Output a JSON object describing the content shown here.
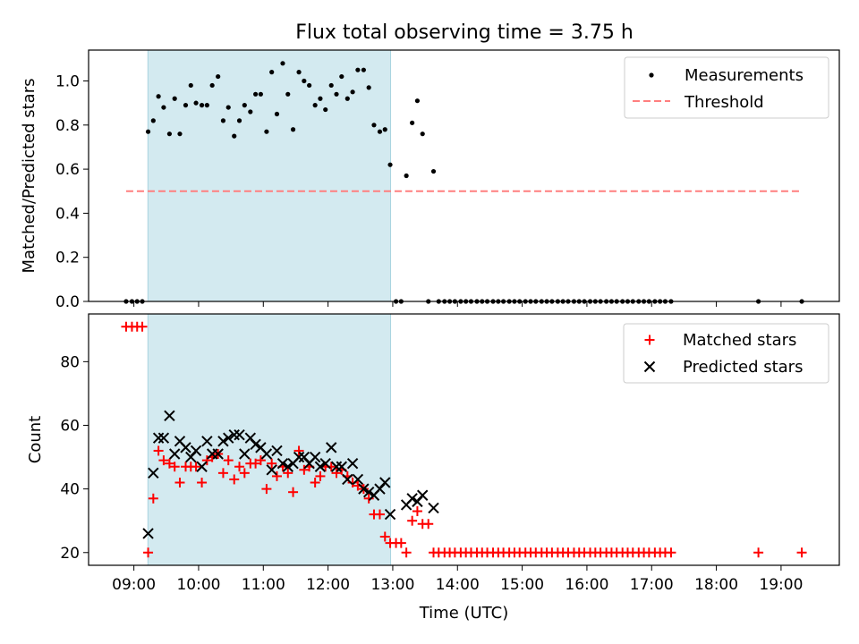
{
  "title": "Flux total observing time = 3.75 h",
  "chart_data": [
    {
      "type": "scatter",
      "ylabel": "Matched/Predicted stars",
      "xlim": [
        8.3,
        19.9
      ],
      "ylim": [
        0,
        1.14
      ],
      "yticks": [
        "0.0",
        "0.2",
        "0.4",
        "0.6",
        "0.8",
        "1.0"
      ],
      "ytick_values": [
        0,
        0.2,
        0.4,
        0.6,
        0.8,
        1.0
      ],
      "shaded_span": [
        "09:13",
        "12:58"
      ],
      "shade_color": "#d3eaf0",
      "legend": {
        "placement": "top-right",
        "measurements_label": "Measurements",
        "threshold_label": "Threshold"
      },
      "threshold": {
        "value": 0.5,
        "x_range": [
          8.88,
          19.3
        ],
        "color": "#ff7f7f"
      },
      "measurements": {
        "color": "#000000",
        "x": [
          8.88,
          8.97,
          9.05,
          9.13,
          9.22,
          9.3,
          9.38,
          9.46,
          9.55,
          9.63,
          9.71,
          9.8,
          9.88,
          9.96,
          10.05,
          10.13,
          10.21,
          10.3,
          10.38,
          10.46,
          10.55,
          10.63,
          10.71,
          10.8,
          10.88,
          10.96,
          11.05,
          11.13,
          11.21,
          11.3,
          11.38,
          11.46,
          11.55,
          11.63,
          11.71,
          11.8,
          11.88,
          11.96,
          12.05,
          12.13,
          12.21,
          12.3,
          12.38,
          12.46,
          12.55,
          12.63,
          12.71,
          12.8,
          12.88,
          12.96,
          13.05,
          13.13,
          13.21,
          13.3,
          13.38,
          13.46,
          13.55,
          13.63,
          13.71,
          13.8,
          13.88,
          13.96,
          14.05,
          14.13,
          14.21,
          14.3,
          14.38,
          14.46,
          14.55,
          14.63,
          14.71,
          14.8,
          14.88,
          14.96,
          15.05,
          15.13,
          15.21,
          15.3,
          15.38,
          15.46,
          15.55,
          15.63,
          15.71,
          15.8,
          15.88,
          15.96,
          16.05,
          16.13,
          16.21,
          16.3,
          16.38,
          16.46,
          16.55,
          16.63,
          16.71,
          16.8,
          16.88,
          16.96,
          17.05,
          17.13,
          17.21,
          17.3,
          18.65,
          19.32
        ],
        "y": [
          0,
          0,
          0,
          0,
          0.77,
          0.82,
          0.93,
          0.88,
          0.76,
          0.92,
          0.76,
          0.89,
          0.98,
          0.9,
          0.89,
          0.89,
          0.98,
          1.02,
          0.82,
          0.88,
          0.75,
          0.82,
          0.89,
          0.86,
          0.94,
          0.94,
          0.77,
          1.04,
          0.85,
          1.08,
          0.94,
          0.78,
          1.04,
          1.0,
          0.98,
          0.89,
          0.92,
          0.87,
          0.98,
          0.94,
          1.02,
          0.92,
          0.95,
          1.05,
          1.05,
          0.97,
          0.8,
          0.77,
          0.78,
          0.62,
          0,
          0,
          0.57,
          0.81,
          0.91,
          0.76,
          0,
          0.59,
          0,
          0,
          0,
          0,
          0,
          0,
          0,
          0,
          0,
          0,
          0,
          0,
          0,
          0,
          0,
          0,
          0,
          0,
          0,
          0,
          0,
          0,
          0,
          0,
          0,
          0,
          0,
          0,
          0,
          0,
          0,
          0,
          0,
          0,
          0,
          0,
          0,
          0,
          0,
          0,
          0,
          0,
          0,
          0,
          0,
          0
        ]
      }
    },
    {
      "type": "scatter",
      "xlabel": "Time (UTC)",
      "ylabel": "Count",
      "xlim": [
        8.3,
        19.9
      ],
      "ylim": [
        16,
        95
      ],
      "xticks": [
        "09:00",
        "10:00",
        "11:00",
        "12:00",
        "13:00",
        "14:00",
        "15:00",
        "16:00",
        "17:00",
        "18:00",
        "19:00"
      ],
      "yticks": [
        "20",
        "40",
        "60",
        "80"
      ],
      "ytick_values": [
        20,
        40,
        60,
        80
      ],
      "shaded_span": [
        "09:13",
        "12:58"
      ],
      "shade_color": "#d3eaf0",
      "legend": {
        "placement": "top-right",
        "matched_label": "Matched stars",
        "predicted_label": "Predicted stars"
      },
      "matched": {
        "color": "#ff0000",
        "x": [
          8.88,
          8.97,
          9.05,
          9.13,
          9.22,
          9.3,
          9.38,
          9.46,
          9.55,
          9.63,
          9.71,
          9.8,
          9.88,
          9.96,
          10.05,
          10.13,
          10.21,
          10.3,
          10.38,
          10.46,
          10.55,
          10.63,
          10.71,
          10.8,
          10.88,
          10.96,
          11.05,
          11.13,
          11.21,
          11.3,
          11.38,
          11.46,
          11.55,
          11.63,
          11.71,
          11.8,
          11.88,
          11.96,
          12.05,
          12.13,
          12.21,
          12.3,
          12.38,
          12.46,
          12.55,
          12.63,
          12.71,
          12.8,
          12.88,
          12.96,
          13.05,
          13.13,
          13.21,
          13.3,
          13.38,
          13.46,
          13.55,
          13.63,
          13.71,
          13.8,
          13.88,
          13.96,
          14.05,
          14.13,
          14.21,
          14.3,
          14.38,
          14.46,
          14.55,
          14.63,
          14.71,
          14.8,
          14.88,
          14.96,
          15.05,
          15.13,
          15.21,
          15.3,
          15.38,
          15.46,
          15.55,
          15.63,
          15.71,
          15.8,
          15.88,
          15.96,
          16.05,
          16.13,
          16.21,
          16.3,
          16.38,
          16.46,
          16.55,
          16.63,
          16.71,
          16.8,
          16.88,
          16.96,
          17.05,
          17.13,
          17.21,
          17.3,
          18.65,
          19.32
        ],
        "y": [
          91,
          91,
          91,
          91,
          20,
          37,
          52,
          49,
          48,
          47,
          42,
          47,
          47,
          47,
          42,
          49,
          50,
          51,
          45,
          49,
          43,
          47,
          45,
          48,
          48,
          49,
          40,
          48,
          44,
          47,
          45,
          39,
          52,
          46,
          47,
          42,
          44,
          47,
          47,
          45,
          46,
          44,
          42,
          41,
          40,
          37,
          32,
          32,
          25,
          23,
          23,
          23,
          20,
          30,
          33,
          29,
          29,
          20,
          20,
          20,
          20,
          20,
          20,
          20,
          20,
          20,
          20,
          20,
          20,
          20,
          20,
          20,
          20,
          20,
          20,
          20,
          20,
          20,
          20,
          20,
          20,
          20,
          20,
          20,
          20,
          20,
          20,
          20,
          20,
          20,
          20,
          20,
          20,
          20,
          20,
          20,
          20,
          20,
          20,
          20,
          20,
          20,
          20,
          20
        ]
      },
      "predicted": {
        "color": "#000000",
        "x": [
          9.22,
          9.3,
          9.38,
          9.46,
          9.55,
          9.63,
          9.71,
          9.8,
          9.88,
          9.96,
          10.05,
          10.13,
          10.21,
          10.3,
          10.38,
          10.46,
          10.55,
          10.63,
          10.71,
          10.8,
          10.88,
          10.96,
          11.05,
          11.13,
          11.21,
          11.3,
          11.38,
          11.46,
          11.55,
          11.63,
          11.71,
          11.8,
          11.88,
          11.96,
          12.05,
          12.13,
          12.21,
          12.3,
          12.38,
          12.46,
          12.55,
          12.63,
          12.71,
          12.8,
          12.88,
          12.96,
          13.21,
          13.3,
          13.38,
          13.46,
          13.63
        ],
        "y": [
          26,
          45,
          56,
          56,
          63,
          51,
          55,
          53,
          50,
          52,
          47,
          55,
          51,
          51,
          55,
          56,
          57,
          57,
          51,
          56,
          54,
          53,
          51,
          46,
          52,
          48,
          47,
          48,
          50,
          50,
          48,
          50,
          47,
          48,
          53,
          47,
          47,
          43,
          48,
          43,
          40,
          39,
          38,
          40,
          42,
          32,
          35,
          37,
          36,
          38,
          34
        ]
      }
    }
  ]
}
